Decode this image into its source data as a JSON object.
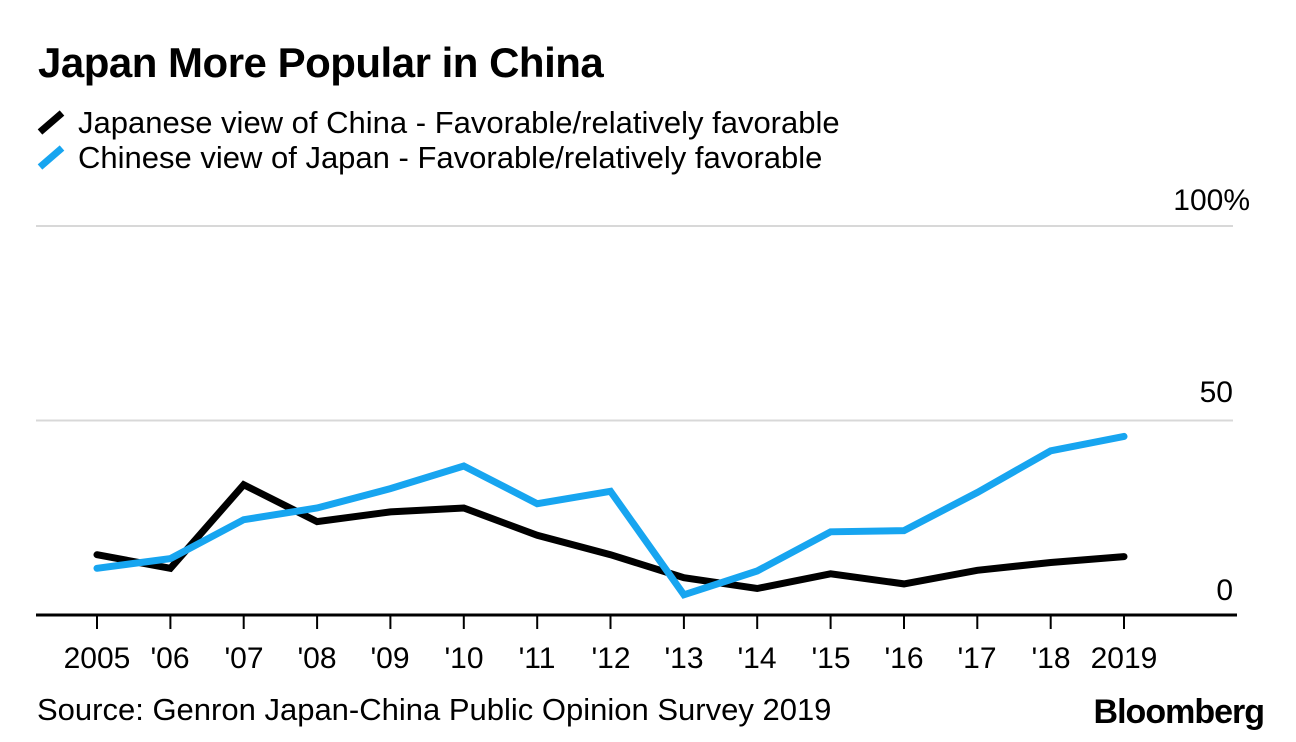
{
  "chart_data": {
    "type": "line",
    "title": "Japan More Popular in China",
    "unit": "%",
    "x": [
      2005,
      2006,
      2007,
      2008,
      2009,
      2010,
      2011,
      2012,
      2013,
      2014,
      2015,
      2016,
      2017,
      2018,
      2019
    ],
    "x_labels": [
      "2005",
      "'06",
      "'07",
      "'08",
      "'09",
      "'10",
      "'11",
      "'12",
      "'13",
      "'14",
      "'15",
      "'16",
      "'17",
      "'18",
      "2019"
    ],
    "series": [
      {
        "name": "Japanese view of China - Favorable/relatively favorable",
        "color": "#000000",
        "values": [
          15.5,
          12.0,
          33.5,
          24.0,
          26.5,
          27.5,
          20.5,
          15.5,
          9.6,
          6.8,
          10.6,
          8.0,
          11.5,
          13.5,
          15.0
        ]
      },
      {
        "name": "Chinese view of Japan - Favorable/relatively favorable",
        "color": "#17a5f0",
        "values": [
          12.0,
          14.5,
          24.5,
          27.5,
          32.5,
          38.3,
          28.6,
          31.8,
          5.2,
          11.3,
          21.4,
          21.7,
          31.5,
          42.2,
          45.9
        ]
      }
    ],
    "ylim": [
      0,
      100
    ],
    "yticks": [
      {
        "value": 0,
        "label": "0"
      },
      {
        "value": 50,
        "label": "50"
      },
      {
        "value": 100,
        "label": "100%"
      }
    ],
    "grid": "horizontal-lines-at-50-and-100",
    "legend_position": "top-left",
    "gridline_color": "#d8d8d8",
    "axis_color": "#000000"
  },
  "footer": {
    "source": "Source: Genron Japan-China Public Opinion Survey 2019",
    "brand": "Bloomberg"
  }
}
